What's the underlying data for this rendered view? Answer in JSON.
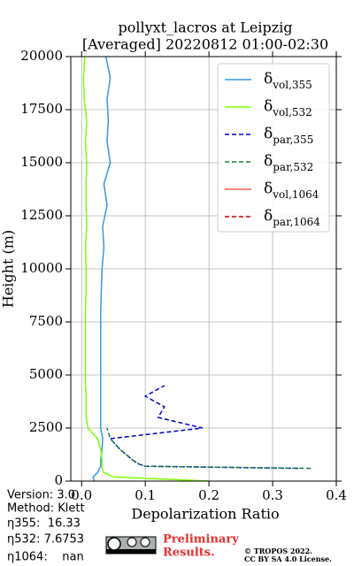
{
  "chart_data": {
    "type": "line",
    "title": [
      "pollyxt_lacros at Leipzig",
      "[Averaged] 20220812 01:00-02:30"
    ],
    "x_label": "Depolarization Ratio",
    "y_label": "Height (m)",
    "y": [
      0,
      200,
      400,
      600,
      700,
      800,
      1000,
      1500,
      2000,
      2500,
      3000,
      3500,
      4000,
      4500,
      5000,
      6000,
      7000,
      8000,
      9000,
      10000,
      11000,
      12000,
      13000,
      14000,
      15000,
      16000,
      17000,
      18000,
      19000,
      20000
    ],
    "series": [
      {
        "name": "δvol,355",
        "color": "#3399e6",
        "linestyle": "solid",
        "values": [
          0.02,
          0.018,
          0.025,
          0.028,
          0.03,
          0.03,
          0.03,
          0.032,
          0.033,
          0.03,
          0.03,
          0.03,
          0.03,
          0.03,
          0.03,
          0.03,
          0.03,
          0.03,
          0.031,
          0.032,
          0.035,
          0.033,
          0.04,
          0.035,
          0.045,
          0.04,
          0.042,
          0.04,
          0.045,
          0.038
        ]
      },
      {
        "name": "δvol,532",
        "color": "#80ff00",
        "linestyle": "solid",
        "values": [
          0.2,
          0.05,
          0.035,
          0.032,
          0.032,
          0.032,
          0.032,
          0.03,
          0.025,
          0.01,
          0.007,
          0.007,
          0.007,
          0.006,
          0.006,
          0.006,
          0.006,
          0.006,
          0.007,
          0.007,
          0.006,
          0.008,
          0.007,
          0.007,
          0.008,
          0.006,
          0.008,
          0.004,
          0.003,
          0.005
        ]
      },
      {
        "name": "δpar,355",
        "color": "#0000cc",
        "linestyle": "dashed",
        "values": [
          null,
          null,
          null,
          0.34,
          0.1,
          0.09,
          0.08,
          0.06,
          0.045,
          0.19,
          0.12,
          0.13,
          0.1,
          0.13,
          null,
          null,
          null,
          null,
          null,
          null,
          null,
          null,
          null,
          null,
          null,
          null,
          null,
          null,
          null,
          null
        ]
      },
      {
        "name": "δpar,532",
        "color": "#1a8040",
        "linestyle": "dashed",
        "values": [
          null,
          null,
          null,
          0.36,
          0.1,
          0.09,
          0.08,
          0.06,
          0.045,
          0.04,
          null,
          null,
          null,
          null,
          null,
          null,
          null,
          null,
          null,
          null,
          null,
          null,
          null,
          null,
          null,
          null,
          null,
          null,
          null,
          null
        ]
      },
      {
        "name": "δvol,1064",
        "color": "#ff6347",
        "linestyle": "solid",
        "values": [
          null,
          null,
          null,
          null,
          null,
          null,
          null,
          null,
          null,
          null,
          null,
          null,
          null,
          null,
          null,
          null,
          null,
          null,
          null,
          null,
          null,
          null,
          null,
          null,
          null,
          null,
          null,
          null,
          null,
          null
        ]
      },
      {
        "name": "δpar,1064",
        "color": "#cc0000",
        "linestyle": "dashed",
        "values": [
          null,
          null,
          null,
          null,
          null,
          null,
          null,
          null,
          null,
          null,
          null,
          null,
          null,
          null,
          null,
          null,
          null,
          null,
          null,
          null,
          null,
          null,
          null,
          null,
          null,
          null,
          null,
          null,
          null,
          null
        ]
      }
    ],
    "xlim": [
      -0.017,
      0.4
    ],
    "ylim": [
      0,
      20000
    ],
    "xticks": [
      {
        "value": 0,
        "label": "0.0"
      },
      0.1,
      0.2,
      0.3,
      0.4
    ],
    "yticks": [
      0,
      2500,
      5000,
      7500,
      10000,
      12500,
      15000,
      17500,
      20000
    ],
    "grid": true,
    "legend": "upper right",
    "annotations": [
      "Version: 3.0",
      "Method: Klett",
      "η355:  16.33",
      "η532: 7.6753",
      "η1064:    nan"
    ],
    "stamp": [
      "Preliminary",
      "Results."
    ],
    "license": [
      "© TROPOS 2022.",
      "CC BY SA 4.0 License."
    ]
  }
}
